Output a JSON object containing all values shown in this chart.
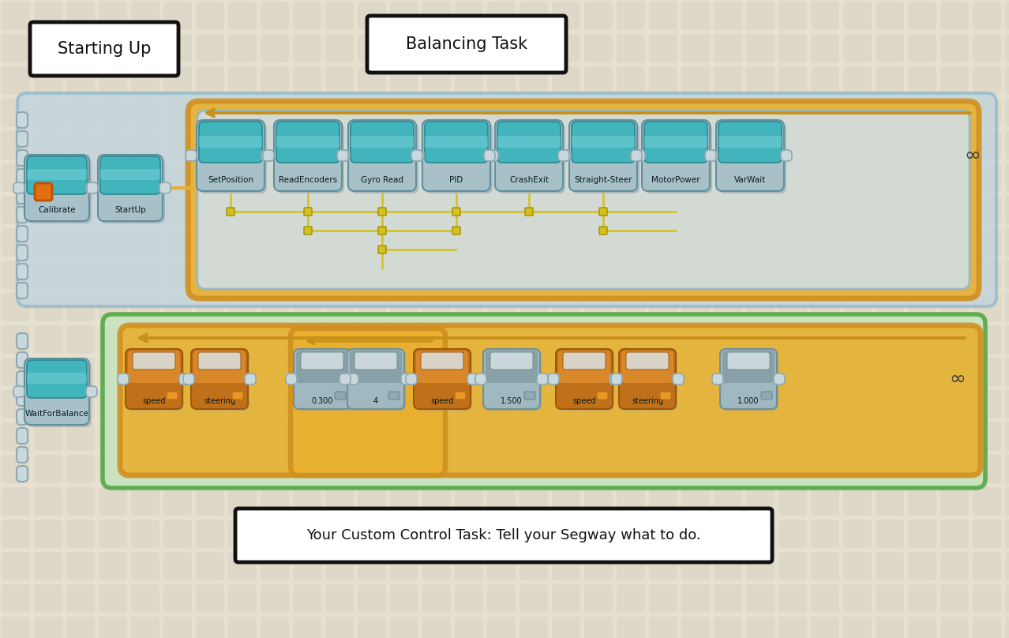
{
  "bg_color": "#e5e0d0",
  "tile_color": "#d8d3c2",
  "tile_gap_color": "#e5e0d0",
  "label_starting_up": "Starting Up",
  "label_balancing_task": "Balancing Task",
  "label_custom_task": "Your Custom Control Task: Tell your Segway what to do.",
  "teal_block_top": "#42b4bc",
  "teal_block_bottom": "#7ad0d8",
  "teal_block_edge": "#2a8890",
  "gray_block_color": "#b0c0c8",
  "gray_block_top": "#98aab2",
  "orange_block_color": "#c87818",
  "orange_block_top": "#d89030",
  "orange_border": "#d09020",
  "light_blue_region": "#c0d4e0",
  "light_blue_region2": "#d0e0e8",
  "light_blue_border": "#90b8cc",
  "light_green_region": "#c8e4c0",
  "light_green_border": "#50a840",
  "connector_color": "#c8d8dc",
  "connector_edge": "#90a8b0",
  "wire_yellow": "#c8b800",
  "wire_yellow2": "#d4c020",
  "black": "#111111",
  "white": "#ffffff",
  "balancing_blocks": [
    "SetPosition",
    "ReadEncoders",
    "Gyro Read",
    "PID",
    "CrashExit",
    "Straight-Steer",
    "MotorPower",
    "VarWait"
  ],
  "startup_blocks": [
    "Calibrate",
    "StartUp"
  ],
  "control_labels": [
    "speed",
    "steering",
    "0.300",
    "4",
    "speed",
    "1.500",
    "speed",
    "steering",
    "1.000"
  ],
  "control_orange": [
    true,
    true,
    false,
    false,
    true,
    false,
    true,
    true,
    false
  ],
  "wait_label": "WaitForBalance"
}
